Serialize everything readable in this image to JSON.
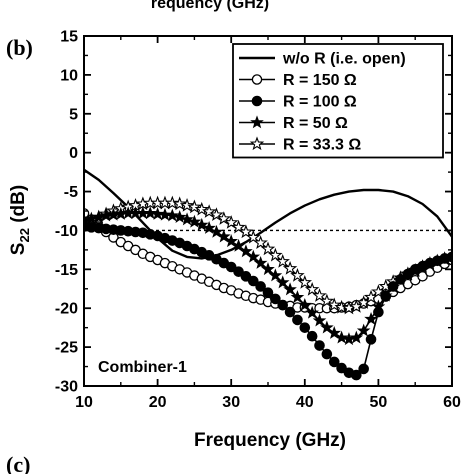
{
  "header_partial": "requency (GHz)",
  "panel_label": "(b)",
  "next_panel_label": "(c)",
  "chart_data": {
    "type": "line",
    "title": "",
    "xlabel": "Frequency (GHz)",
    "ylabel_main": "S",
    "ylabel_sub": "22",
    "ylabel_unit": " (dB)",
    "xlim": [
      10,
      60
    ],
    "ylim": [
      -30,
      15
    ],
    "x_ticks": [
      10,
      20,
      30,
      40,
      50,
      60
    ],
    "y_ticks": [
      15,
      10,
      5,
      0,
      -5,
      -10,
      -15,
      -20,
      -25,
      -30
    ],
    "reference_line": -10,
    "grid": false,
    "legend_position": "top-right",
    "annotation": "Combiner-1",
    "series": [
      {
        "name": "w/o R (i.e. open)",
        "marker": "none",
        "points": [
          [
            10,
            -2.2
          ],
          [
            12,
            -3.5
          ],
          [
            14,
            -5.2
          ],
          [
            16,
            -7.0
          ],
          [
            18,
            -9.0
          ],
          [
            20,
            -11.0
          ],
          [
            22,
            -12.6
          ],
          [
            24,
            -13.4
          ],
          [
            26,
            -13.6
          ],
          [
            28,
            -13.2
          ],
          [
            30,
            -12.5
          ],
          [
            32,
            -11.5
          ],
          [
            34,
            -10.3
          ],
          [
            36,
            -9.0
          ],
          [
            38,
            -7.8
          ],
          [
            40,
            -6.8
          ],
          [
            42,
            -6.0
          ],
          [
            44,
            -5.4
          ],
          [
            46,
            -5.0
          ],
          [
            48,
            -4.8
          ],
          [
            50,
            -4.8
          ],
          [
            52,
            -5.0
          ],
          [
            54,
            -5.6
          ],
          [
            56,
            -6.6
          ],
          [
            58,
            -8.2
          ],
          [
            60,
            -10.8
          ]
        ]
      },
      {
        "name": "R = 150 Ω",
        "marker": "open-circle",
        "points": [
          [
            10,
            -7.8
          ],
          [
            11,
            -8.6
          ],
          [
            12,
            -9.5
          ],
          [
            13,
            -10.2
          ],
          [
            14,
            -10.9
          ],
          [
            15,
            -11.5
          ],
          [
            16,
            -12.0
          ],
          [
            17,
            -12.5
          ],
          [
            18,
            -13.0
          ],
          [
            19,
            -13.4
          ],
          [
            20,
            -13.8
          ],
          [
            21,
            -14.2
          ],
          [
            22,
            -14.6
          ],
          [
            23,
            -15.0
          ],
          [
            24,
            -15.4
          ],
          [
            25,
            -15.8
          ],
          [
            26,
            -16.2
          ],
          [
            27,
            -16.6
          ],
          [
            28,
            -17.0
          ],
          [
            29,
            -17.4
          ],
          [
            30,
            -17.7
          ],
          [
            31,
            -18.1
          ],
          [
            32,
            -18.4
          ],
          [
            33,
            -18.7
          ],
          [
            34,
            -18.9
          ],
          [
            35,
            -19.2
          ],
          [
            36,
            -19.4
          ],
          [
            37,
            -19.6
          ],
          [
            38,
            -19.7
          ],
          [
            39,
            -19.9
          ],
          [
            40,
            -19.9
          ],
          [
            41,
            -20.0
          ],
          [
            42,
            -20.0
          ],
          [
            43,
            -20.0
          ],
          [
            44,
            -20.0
          ],
          [
            45,
            -19.9
          ],
          [
            46,
            -19.8
          ],
          [
            47,
            -19.6
          ],
          [
            48,
            -19.4
          ],
          [
            49,
            -19.1
          ],
          [
            50,
            -18.8
          ],
          [
            51,
            -18.4
          ],
          [
            52,
            -17.9
          ],
          [
            53,
            -17.4
          ],
          [
            54,
            -16.9
          ],
          [
            55,
            -16.4
          ],
          [
            56,
            -15.9
          ],
          [
            57,
            -15.3
          ],
          [
            58,
            -14.8
          ],
          [
            59,
            -14.3
          ],
          [
            60,
            -13.8
          ]
        ]
      },
      {
        "name": "R = 100 Ω",
        "marker": "filled-circle",
        "points": [
          [
            10,
            -9.5
          ],
          [
            11,
            -9.6
          ],
          [
            12,
            -9.7
          ],
          [
            13,
            -9.8
          ],
          [
            14,
            -9.9
          ],
          [
            15,
            -10.0
          ],
          [
            16,
            -10.1
          ],
          [
            17,
            -10.2
          ],
          [
            18,
            -10.3
          ],
          [
            19,
            -10.5
          ],
          [
            20,
            -10.7
          ],
          [
            21,
            -11.0
          ],
          [
            22,
            -11.3
          ],
          [
            23,
            -11.6
          ],
          [
            24,
            -12.0
          ],
          [
            25,
            -12.4
          ],
          [
            26,
            -12.8
          ],
          [
            27,
            -13.2
          ],
          [
            28,
            -13.7
          ],
          [
            29,
            -14.2
          ],
          [
            30,
            -14.7
          ],
          [
            31,
            -15.3
          ],
          [
            32,
            -15.9
          ],
          [
            33,
            -16.5
          ],
          [
            34,
            -17.2
          ],
          [
            35,
            -18.0
          ],
          [
            36,
            -18.8
          ],
          [
            37,
            -19.6
          ],
          [
            38,
            -20.5
          ],
          [
            39,
            -21.5
          ],
          [
            40,
            -22.5
          ],
          [
            41,
            -23.6
          ],
          [
            42,
            -24.8
          ],
          [
            43,
            -25.9
          ],
          [
            44,
            -26.9
          ],
          [
            45,
            -27.7
          ],
          [
            46,
            -28.3
          ],
          [
            47,
            -28.6
          ],
          [
            48,
            -27.8
          ],
          [
            49,
            -24.0
          ],
          [
            50,
            -20.5
          ],
          [
            51,
            -18.5
          ],
          [
            52,
            -17.2
          ],
          [
            53,
            -16.3
          ],
          [
            54,
            -15.6
          ],
          [
            55,
            -15.0
          ],
          [
            56,
            -14.6
          ],
          [
            57,
            -14.2
          ],
          [
            58,
            -13.9
          ],
          [
            59,
            -13.6
          ],
          [
            60,
            -13.4
          ]
        ]
      },
      {
        "name": "R = 50 Ω",
        "marker": "filled-star",
        "points": [
          [
            10,
            -8.8
          ],
          [
            11,
            -8.5
          ],
          [
            12,
            -8.3
          ],
          [
            13,
            -8.1
          ],
          [
            14,
            -8.0
          ],
          [
            15,
            -7.9
          ],
          [
            16,
            -7.8
          ],
          [
            17,
            -7.8
          ],
          [
            18,
            -7.8
          ],
          [
            19,
            -7.8
          ],
          [
            20,
            -7.9
          ],
          [
            21,
            -8.0
          ],
          [
            22,
            -8.1
          ],
          [
            23,
            -8.3
          ],
          [
            24,
            -8.6
          ],
          [
            25,
            -8.9
          ],
          [
            26,
            -9.3
          ],
          [
            27,
            -9.7
          ],
          [
            28,
            -10.2
          ],
          [
            29,
            -10.8
          ],
          [
            30,
            -11.4
          ],
          [
            31,
            -12.0
          ],
          [
            32,
            -12.7
          ],
          [
            33,
            -13.4
          ],
          [
            34,
            -14.2
          ],
          [
            35,
            -15.0
          ],
          [
            36,
            -15.8
          ],
          [
            37,
            -16.7
          ],
          [
            38,
            -17.6
          ],
          [
            39,
            -18.6
          ],
          [
            40,
            -19.6
          ],
          [
            41,
            -20.6
          ],
          [
            42,
            -21.6
          ],
          [
            43,
            -22.5
          ],
          [
            44,
            -23.2
          ],
          [
            45,
            -23.8
          ],
          [
            46,
            -24.0
          ],
          [
            47,
            -23.8
          ],
          [
            48,
            -22.9
          ],
          [
            49,
            -21.4
          ],
          [
            50,
            -19.8
          ],
          [
            51,
            -18.4
          ],
          [
            52,
            -17.3
          ],
          [
            53,
            -16.4
          ],
          [
            54,
            -15.7
          ],
          [
            55,
            -15.1
          ],
          [
            56,
            -14.6
          ],
          [
            57,
            -14.2
          ],
          [
            58,
            -13.9
          ],
          [
            59,
            -13.6
          ],
          [
            60,
            -13.4
          ]
        ]
      },
      {
        "name": "R = 33.3 Ω",
        "marker": "open-star",
        "points": [
          [
            10,
            -9.2
          ],
          [
            11,
            -8.7
          ],
          [
            12,
            -8.3
          ],
          [
            13,
            -7.9
          ],
          [
            14,
            -7.5
          ],
          [
            15,
            -7.2
          ],
          [
            16,
            -7.0
          ],
          [
            17,
            -6.8
          ],
          [
            18,
            -6.6
          ],
          [
            19,
            -6.5
          ],
          [
            20,
            -6.5
          ],
          [
            21,
            -6.5
          ],
          [
            22,
            -6.5
          ],
          [
            23,
            -6.6
          ],
          [
            24,
            -6.8
          ],
          [
            25,
            -7.0
          ],
          [
            26,
            -7.3
          ],
          [
            27,
            -7.6
          ],
          [
            28,
            -8.0
          ],
          [
            29,
            -8.5
          ],
          [
            30,
            -9.0
          ],
          [
            31,
            -9.6
          ],
          [
            32,
            -10.2
          ],
          [
            33,
            -10.9
          ],
          [
            34,
            -11.6
          ],
          [
            35,
            -12.4
          ],
          [
            36,
            -13.2
          ],
          [
            37,
            -14.0
          ],
          [
            38,
            -14.9
          ],
          [
            39,
            -15.8
          ],
          [
            40,
            -16.7
          ],
          [
            41,
            -17.6
          ],
          [
            42,
            -18.4
          ],
          [
            43,
            -19.1
          ],
          [
            44,
            -19.6
          ],
          [
            45,
            -19.9
          ],
          [
            46,
            -20.0
          ],
          [
            47,
            -19.8
          ],
          [
            48,
            -19.3
          ],
          [
            49,
            -18.6
          ],
          [
            50,
            -17.9
          ],
          [
            51,
            -17.2
          ],
          [
            52,
            -16.6
          ],
          [
            53,
            -16.1
          ],
          [
            54,
            -15.6
          ],
          [
            55,
            -15.2
          ],
          [
            56,
            -14.8
          ],
          [
            57,
            -14.4
          ],
          [
            58,
            -14.0
          ],
          [
            59,
            -13.7
          ],
          [
            60,
            -13.4
          ]
        ]
      }
    ]
  }
}
